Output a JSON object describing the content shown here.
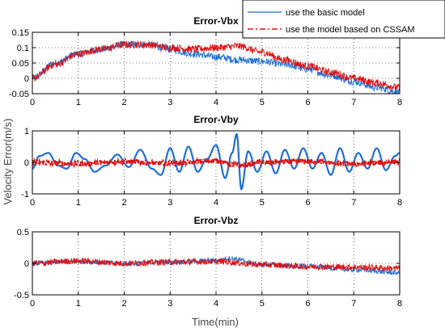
{
  "chart_data": [
    {
      "type": "line",
      "title": "Error-Vbx",
      "xlim": [
        0,
        8
      ],
      "ylim": [
        -0.05,
        0.15
      ],
      "xticks": [
        "0",
        "1",
        "2",
        "3",
        "4",
        "5",
        "6",
        "7",
        "8"
      ],
      "yticks": [
        "-0.05",
        "0",
        "0.05",
        "0.1",
        "0.15"
      ],
      "grid": "dotted",
      "legend_position": "top-right",
      "series": [
        {
          "name": "use the basic model",
          "color": "#1f6fd4",
          "style": "solid",
          "x": [
            0,
            0.5,
            1,
            1.5,
            2,
            2.5,
            3,
            3.5,
            4,
            4.5,
            5,
            5.5,
            6,
            6.5,
            7,
            7.5,
            8
          ],
          "y": [
            0,
            0.05,
            0.08,
            0.095,
            0.11,
            0.11,
            0.095,
            0.08,
            0.07,
            0.06,
            0.055,
            0.045,
            0.03,
            0.01,
            -0.01,
            -0.03,
            -0.045
          ],
          "noise": 0.012
        },
        {
          "name": "use the model based on CSSAM",
          "color": "#e01010",
          "style": "dashdot",
          "x": [
            0,
            0.5,
            1,
            1.5,
            2,
            2.5,
            3,
            3.5,
            4,
            4.5,
            5,
            5.5,
            6,
            6.5,
            7,
            7.5,
            8
          ],
          "y": [
            0,
            0.045,
            0.08,
            0.095,
            0.11,
            0.11,
            0.1,
            0.095,
            0.1,
            0.105,
            0.085,
            0.06,
            0.04,
            0.02,
            0.0,
            -0.015,
            -0.03
          ],
          "noise": 0.012
        }
      ]
    },
    {
      "type": "line",
      "title": "Error-Vby",
      "xlim": [
        0,
        8
      ],
      "ylim": [
        -1,
        1
      ],
      "xticks": [
        "0",
        "1",
        "2",
        "3",
        "4",
        "5",
        "6",
        "7",
        "8"
      ],
      "yticks": [
        "-1",
        "0",
        "1"
      ],
      "grid": "dotted",
      "series": [
        {
          "name": "use the basic model",
          "color": "#1f6fd4",
          "style": "solid",
          "x": [
            0,
            0.15,
            0.35,
            0.55,
            0.75,
            0.95,
            1.15,
            1.35,
            1.6,
            1.85,
            2.1,
            2.35,
            2.6,
            2.8,
            3.0,
            3.2,
            3.4,
            3.6,
            3.8,
            4.0,
            4.2,
            4.35,
            4.45,
            4.55,
            4.7,
            4.9,
            5.1,
            5.3,
            5.5,
            5.7,
            5.9,
            6.1,
            6.3,
            6.5,
            6.7,
            6.9,
            7.1,
            7.3,
            7.5,
            7.7,
            7.9,
            8.0
          ],
          "y": [
            -0.2,
            0.2,
            0.3,
            -0.1,
            -0.2,
            0.3,
            0.1,
            -0.3,
            -0.1,
            0.25,
            -0.15,
            0.4,
            -0.2,
            -0.4,
            0.45,
            -0.3,
            0.5,
            -0.3,
            0.1,
            0.55,
            -0.5,
            0.3,
            0.9,
            -0.85,
            0.35,
            -0.3,
            0.35,
            -0.35,
            0.4,
            -0.2,
            0.45,
            -0.2,
            0.3,
            -0.4,
            0.45,
            -0.3,
            0.3,
            -0.2,
            0.45,
            -0.25,
            0.2,
            0.3
          ],
          "noise": 0.0
        },
        {
          "name": "use the model based on CSSAM",
          "color": "#e01010",
          "style": "dashdot",
          "x": [
            0,
            1,
            2,
            3,
            4,
            4.5,
            5,
            6,
            7,
            8
          ],
          "y": [
            0,
            -0.05,
            0.02,
            -0.03,
            0.05,
            -0.1,
            0.0,
            0.03,
            -0.05,
            0.02
          ],
          "noise": 0.08
        }
      ]
    },
    {
      "type": "line",
      "title": "Error-Vbz",
      "xlim": [
        0,
        8
      ],
      "ylim": [
        -0.5,
        0.5
      ],
      "xticks": [
        "0",
        "1",
        "2",
        "3",
        "4",
        "5",
        "6",
        "7",
        "8"
      ],
      "yticks": [
        "-0.5",
        "0",
        "0.5"
      ],
      "grid": "dotted",
      "series": [
        {
          "name": "use the basic model",
          "color": "#1f6fd4",
          "style": "solid",
          "x": [
            0,
            1,
            2,
            3,
            4,
            4.3,
            5,
            6,
            7,
            8
          ],
          "y": [
            0,
            0.03,
            0.0,
            0.02,
            0.04,
            0.08,
            -0.02,
            -0.05,
            -0.1,
            -0.15
          ],
          "noise": 0.04
        },
        {
          "name": "use the model based on CSSAM",
          "color": "#e01010",
          "style": "dashdot",
          "x": [
            0,
            1,
            2,
            3,
            4,
            5,
            6,
            7,
            8
          ],
          "y": [
            0,
            0.04,
            0.0,
            0.02,
            0.03,
            -0.02,
            -0.05,
            -0.06,
            -0.08
          ],
          "noise": 0.05
        }
      ]
    }
  ],
  "legend": [
    {
      "label": "use the basic model",
      "color": "#1f6fd4",
      "style": "solid"
    },
    {
      "label": "use the model based on CSSAM",
      "color": "#e01010",
      "style": "dashdot"
    }
  ],
  "xlabel": "Time(min)",
  "ylabel": "Velocity Error(m/s)"
}
